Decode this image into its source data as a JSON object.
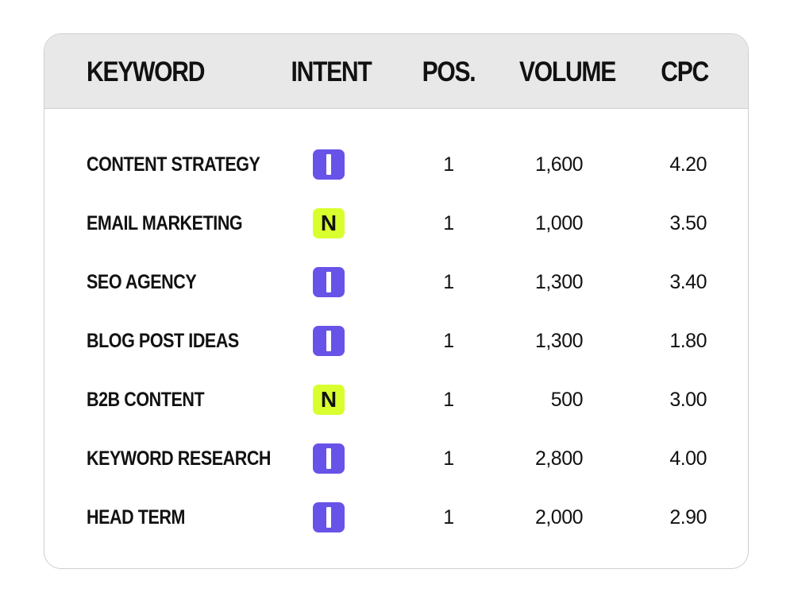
{
  "colors": {
    "informational_badge": "#6853e8",
    "navigational_badge": "#d9ff2e",
    "header_background": "#e8e8e8",
    "card_border": "#cfcfcf"
  },
  "chart_data": {
    "type": "table",
    "columns": [
      "KEYWORD",
      "INTENT",
      "POS.",
      "VOLUME",
      "CPC"
    ],
    "rows": [
      {
        "keyword": "CONTENT STRATEGY",
        "intent": "I",
        "pos": "1",
        "volume": "1,600",
        "cpc": "4.20"
      },
      {
        "keyword": "EMAIL MARKETING",
        "intent": "N",
        "pos": "1",
        "volume": "1,000",
        "cpc": "3.50"
      },
      {
        "keyword": "SEO AGENCY",
        "intent": "I",
        "pos": "1",
        "volume": "1,300",
        "cpc": "3.40"
      },
      {
        "keyword": "BLOG POST IDEAS",
        "intent": "I",
        "pos": "1",
        "volume": "1,300",
        "cpc": "1.80"
      },
      {
        "keyword": "B2B CONTENT",
        "intent": "N",
        "pos": "1",
        "volume": "500",
        "cpc": "3.00"
      },
      {
        "keyword": "KEYWORD RESEARCH",
        "intent": "I",
        "pos": "1",
        "volume": "2,800",
        "cpc": "4.00"
      },
      {
        "keyword": "HEAD TERM",
        "intent": "I",
        "pos": "1",
        "volume": "2,000",
        "cpc": "2.90"
      }
    ]
  }
}
